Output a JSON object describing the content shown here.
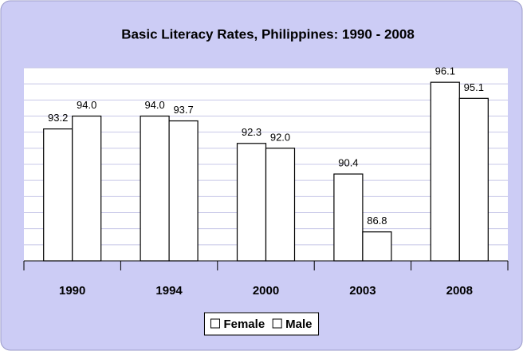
{
  "chart_data": {
    "type": "bar",
    "title": "Basic Literacy Rates, Philippines: 1990 - 2008",
    "categories": [
      "1990",
      "1994",
      "2000",
      "2003",
      "2008"
    ],
    "series": [
      {
        "name": "Female",
        "color": "#ffffff",
        "values": [
          93.2,
          94.0,
          92.3,
          90.4,
          96.1
        ],
        "value_labels": [
          "93.2",
          "94.0",
          "92.3",
          "90.4",
          "96.1"
        ]
      },
      {
        "name": "Male",
        "color": "#ffffff",
        "values": [
          94.0,
          93.7,
          92.0,
          86.8,
          95.1
        ],
        "value_labels": [
          "94.0",
          "93.7",
          "92.0",
          "86.8",
          "95.1"
        ]
      }
    ],
    "ylim": [
      85,
      97
    ],
    "yticks": [
      85,
      86,
      87,
      88,
      89,
      90,
      91,
      92,
      93,
      94,
      95,
      96,
      97
    ],
    "grid": true,
    "legend": "bottom"
  }
}
